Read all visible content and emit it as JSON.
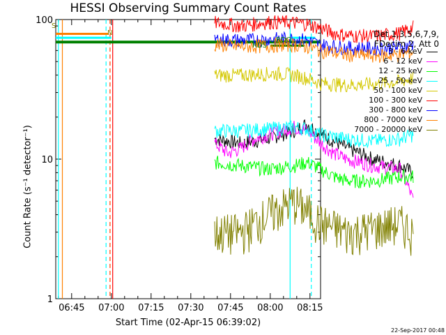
{
  "chart_data": {
    "type": "line",
    "title": "HESSI Observing Summary Count Rates",
    "xlabel": "Start Time (02-Apr-15 06:39:02)",
    "ylabel": "Count Rate (s⁻¹ detector⁻¹)",
    "yscale": "log",
    "ylim": [
      1,
      100
    ],
    "xlim": [
      "06:39",
      "08:19"
    ],
    "x_ticks": [
      "06:45",
      "07:00",
      "07:15",
      "07:30",
      "07:45",
      "08:00",
      "08:15"
    ],
    "y_ticks": [
      "1",
      "10",
      "100"
    ],
    "legend_header": [
      "Det 1,3,5,6,7,9,",
      "FDecim 2, Att 0"
    ],
    "legend_placement": "right",
    "series": [
      {
        "name": "3 - 6 keV",
        "color": "#000000",
        "x_min": [
          60,
          70,
          80,
          90,
          95,
          100,
          110,
          120,
          125,
          130,
          135
        ],
        "y": [
          14,
          13,
          14,
          16,
          18,
          15,
          12,
          10,
          9.5,
          9,
          8
        ]
      },
      {
        "name": "6 - 12 keV",
        "color": "#ff00ff",
        "x_min": [
          60,
          65,
          70,
          75,
          80,
          90,
          95,
          100,
          105,
          110,
          120,
          130,
          135
        ],
        "y": [
          13,
          11,
          12,
          14,
          15,
          17,
          16,
          13,
          11,
          10,
          9,
          8.5,
          5
        ]
      },
      {
        "name": "12 - 25 keV",
        "color": "#00ff00",
        "x_min": [
          60,
          70,
          80,
          90,
          95,
          100,
          105,
          110,
          120,
          130,
          135
        ],
        "y": [
          9.5,
          9,
          8.5,
          9,
          9.5,
          8.5,
          7.5,
          7,
          7,
          7.5,
          7.5
        ]
      },
      {
        "name": "25 - 50 keV",
        "color": "#00ffff",
        "x_min": [
          60,
          70,
          80,
          90,
          95,
          100,
          110,
          120,
          130,
          135
        ],
        "y": [
          16,
          16,
          16.5,
          17,
          16.5,
          15,
          14,
          13.5,
          14,
          15
        ]
      },
      {
        "name": "50 - 100 keV",
        "color": "#d4c800",
        "x_min": [
          60,
          70,
          80,
          85,
          90,
          95,
          100,
          110,
          120,
          130,
          135
        ],
        "y": [
          40,
          40,
          41,
          41,
          40,
          38,
          35,
          34,
          34.5,
          36,
          38
        ]
      },
      {
        "name": "100 - 300 keV",
        "color": "#ff0000",
        "x_min": [
          60,
          65,
          70,
          75,
          80,
          85,
          90,
          95,
          100,
          105,
          110,
          120,
          130,
          135
        ],
        "y": [
          95,
          93,
          90,
          93,
          96,
          96,
          95,
          93,
          87,
          80,
          77,
          76,
          80,
          88
        ]
      },
      {
        "name": "300 - 800 keV",
        "color": "#0000ff",
        "x_min": [
          60,
          70,
          80,
          85,
          90,
          95,
          100,
          110,
          120,
          130,
          135
        ],
        "y": [
          72,
          71,
          72,
          73,
          73,
          71,
          66,
          63,
          62,
          63,
          66
        ]
      },
      {
        "name": "800 - 7000 keV",
        "color": "#ff8000",
        "x_min": [
          60,
          70,
          80,
          85,
          90,
          95,
          100,
          110,
          120,
          130,
          135
        ],
        "y": [
          66,
          64,
          65,
          66,
          66,
          64,
          60,
          56,
          55,
          56,
          59
        ]
      },
      {
        "name": "7000 - 20000 keV",
        "color": "#808000",
        "x_min": [
          60,
          70,
          80,
          90,
          100,
          110,
          120,
          130,
          135
        ],
        "y": [
          3,
          3,
          4,
          5,
          3.5,
          3,
          3.2,
          3.5,
          3
        ]
      }
    ],
    "annotations": [
      {
        "text": "S",
        "color": "#808000"
      },
      {
        "text": "N",
        "color": "#808000"
      },
      {
        "text": "RDS",
        "color": "#008000"
      },
      {
        "text": "RDO",
        "color": "#008000"
      }
    ],
    "footer": "22-Sep-2017 00:48"
  }
}
